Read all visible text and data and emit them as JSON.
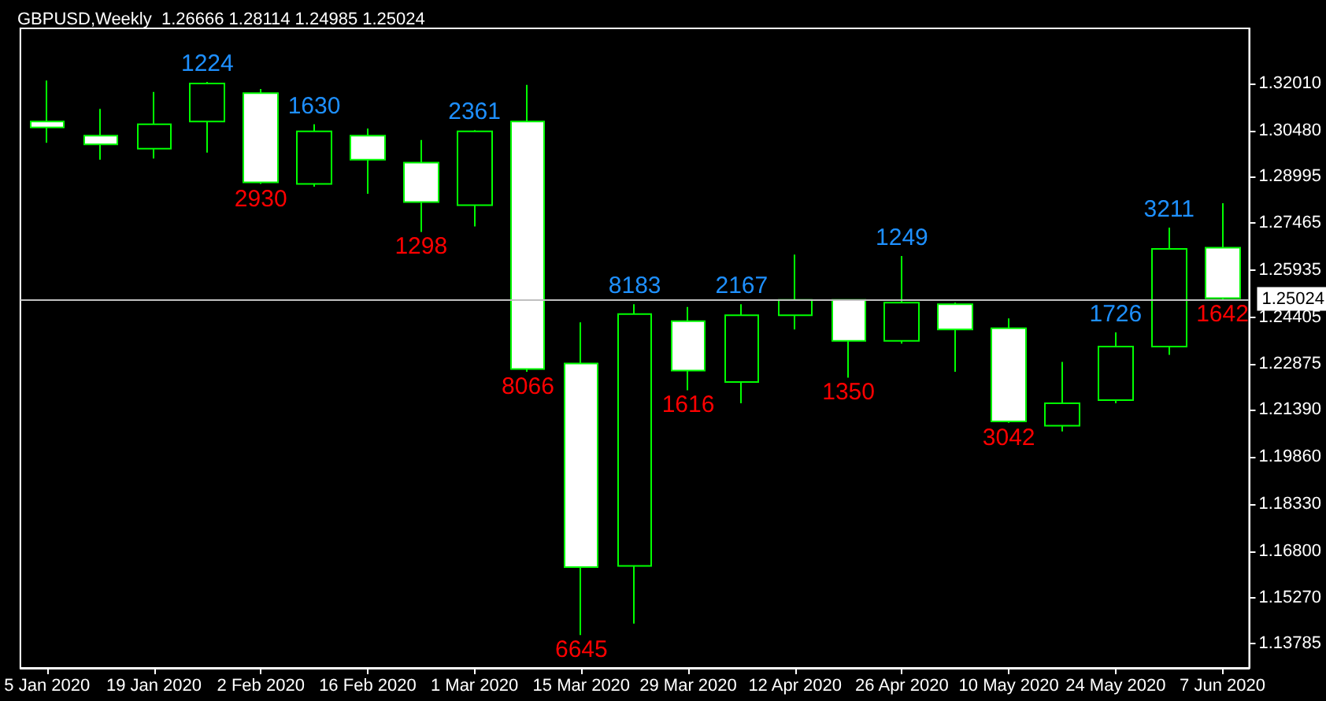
{
  "chart_data": {
    "type": "candlestick",
    "title": "GBPUSD,Weekly  1.26666 1.28114 1.24985 1.25024",
    "categories": [
      "5 Jan 2020",
      null,
      "19 Jan 2020",
      null,
      "2 Feb 2020",
      null,
      "16 Feb 2020",
      null,
      "1 Mar 2020",
      null,
      "15 Mar 2020",
      null,
      "29 Mar 2020",
      null,
      "12 Apr 2020",
      null,
      "26 Apr 2020",
      null,
      "10 May 2020",
      null,
      "24 May 2020",
      null,
      "7 Jun 2020"
    ],
    "ohlc": [
      [
        1.3077,
        1.321,
        1.3008,
        1.3058
      ],
      [
        1.3031,
        1.3118,
        1.2953,
        1.3003
      ],
      [
        1.2989,
        1.3173,
        1.2957,
        1.3068
      ],
      [
        1.3077,
        1.3206,
        1.2976,
        1.3201
      ],
      [
        1.3169,
        1.3183,
        1.2874,
        1.2879
      ],
      [
        1.2874,
        1.3068,
        1.2865,
        1.3045
      ],
      [
        1.3031,
        1.3054,
        1.2842,
        1.2953
      ],
      [
        1.2943,
        1.3017,
        1.2718,
        1.2815
      ],
      [
        1.2805,
        1.3049,
        1.2736,
        1.3045
      ],
      [
        1.3077,
        1.3196,
        1.2263,
        1.2272
      ],
      [
        1.229,
        1.2424,
        1.1407,
        1.1628
      ],
      [
        1.1632,
        1.2483,
        1.1444,
        1.2451
      ],
      [
        1.2428,
        1.2474,
        1.2203,
        1.2267
      ],
      [
        1.223,
        1.2483,
        1.2161,
        1.2447
      ],
      [
        1.2447,
        1.2644,
        1.2401,
        1.2497
      ],
      [
        1.2497,
        1.2497,
        1.2244,
        1.2364
      ],
      [
        1.2364,
        1.264,
        1.2355,
        1.2488
      ],
      [
        1.2483,
        1.2488,
        1.2263,
        1.2401
      ],
      [
        1.2405,
        1.2437,
        1.2097,
        1.2102
      ],
      [
        1.2088,
        1.2295,
        1.2069,
        1.2161
      ],
      [
        1.2171,
        1.2391,
        1.2161,
        1.2345
      ],
      [
        1.2345,
        1.2732,
        1.2318,
        1.2663
      ],
      [
        1.26666,
        1.28114,
        1.24985,
        1.25024
      ]
    ],
    "value_labels": [
      null,
      null,
      null,
      "1224",
      "2930",
      "1630",
      null,
      "1298",
      "2361",
      "8066",
      "6645",
      "8183",
      "1616",
      "2167",
      null,
      "1350",
      "1249",
      null,
      "3042",
      null,
      "1726",
      "3211",
      "1642"
    ],
    "color": "#00ff00",
    "ylim": [
      1.13,
      1.338
    ],
    "yticks": [
      {
        "value": 1.3201,
        "label": "1.32010"
      },
      {
        "value": 1.3048,
        "label": "1.30480"
      },
      {
        "value": 1.28995,
        "label": "1.28995"
      },
      {
        "value": 1.27465,
        "label": "1.27465"
      },
      {
        "value": 1.25935,
        "label": "1.25935"
      },
      {
        "value": 1.24405,
        "label": "1.24405"
      },
      {
        "value": 1.22875,
        "label": "1.22875"
      },
      {
        "value": 1.2139,
        "label": "1.21390"
      },
      {
        "value": 1.1986,
        "label": "1.19860"
      },
      {
        "value": 1.1833,
        "label": "1.18330"
      },
      {
        "value": 1.168,
        "label": "1.16800"
      },
      {
        "value": 1.1527,
        "label": "1.15270"
      },
      {
        "value": 1.13785,
        "label": "1.13785"
      }
    ],
    "ref_lines": [
      {
        "axis": "y",
        "value": 1.25024,
        "label": "1.25024",
        "color": "#c0c0c0"
      }
    ],
    "grid": false
  }
}
